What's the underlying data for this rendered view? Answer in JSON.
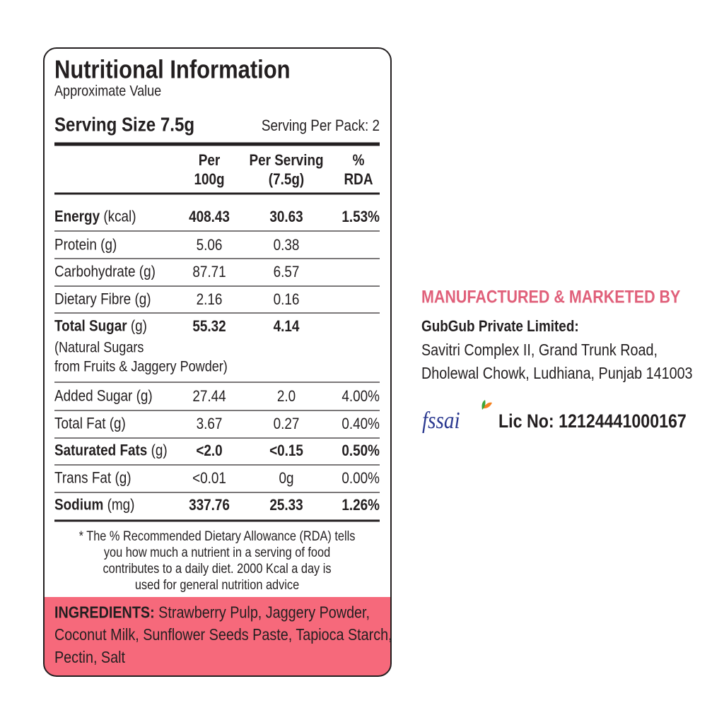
{
  "header": {
    "title": "Nutritional Information",
    "subtitle": "Approximate Value"
  },
  "serving": {
    "size": "Serving Size 7.5g",
    "per_pack": "Serving Per Pack: 2"
  },
  "table": {
    "columns": [
      [
        "Per",
        "100g"
      ],
      [
        "Per Serving",
        "(7.5g)"
      ],
      [
        "%",
        "RDA"
      ]
    ],
    "rows": [
      {
        "name": "Energy",
        "unit": "(kcal)",
        "values": [
          "408.43",
          "30.63",
          "1.53%"
        ],
        "bold": true
      },
      {
        "name": "Protein",
        "unit": "(g)",
        "values": [
          "5.06",
          "0.38"
        ]
      },
      {
        "name": "Carbohydrate",
        "unit": "(g)",
        "values": [
          "87.71",
          "6.57"
        ]
      },
      {
        "name": "Dietary Fibre",
        "unit": "(g)",
        "values": [
          "2.16",
          "0.16"
        ]
      },
      {
        "name": "Total Sugar",
        "unit": "(g)",
        "values": [
          "55.32",
          "4.14"
        ],
        "bold": true,
        "note": [
          "(Natural Sugars",
          "from Fruits & Jaggery Powder)"
        ]
      },
      {
        "name": "Added Sugar",
        "unit": "(g)",
        "values": [
          "27.44",
          "2.0",
          "4.00%"
        ]
      },
      {
        "name": "Total Fat",
        "unit": "(g)",
        "values": [
          "3.67",
          "0.27",
          "0.40%"
        ]
      },
      {
        "name": "Saturated Fats",
        "unit": "(g)",
        "values": [
          "<2.0",
          "<0.15",
          "0.50%"
        ],
        "bold": true
      },
      {
        "name": "Trans Fat",
        "unit": "(g)",
        "values": [
          "<0.01",
          "0g",
          "0.00%"
        ]
      },
      {
        "name": "Sodium",
        "unit": "(mg)",
        "values": [
          "337.76",
          "25.33",
          "1.26%"
        ],
        "bold": true
      }
    ]
  },
  "footnote": [
    "* The %  Recommended Dietary Allowance (RDA) tells",
    "you how much a nutrient in a serving of food",
    "contributes to a daily diet. 2000 Kcal a day is",
    "used for general nutrition advice"
  ],
  "ingredients": {
    "label": "INGREDIENTS:",
    "lines": [
      "Strawberry Pulp, Jaggery Powder,",
      "Coconut Milk, Sunflower Seeds Paste, Tapioca Starch,",
      "Pectin, Salt"
    ]
  },
  "manufacturer": {
    "heading": "MANUFACTURED & MARKETED BY",
    "name": "GubGub Private Limited:",
    "address": [
      "Savitri Complex II, Grand Trunk Road,",
      "Dholewal Chowk, Ludhiana, Punjab 141003"
    ]
  },
  "fssai": {
    "logo": "fssai",
    "license": "Lic No: 12124441000167"
  }
}
